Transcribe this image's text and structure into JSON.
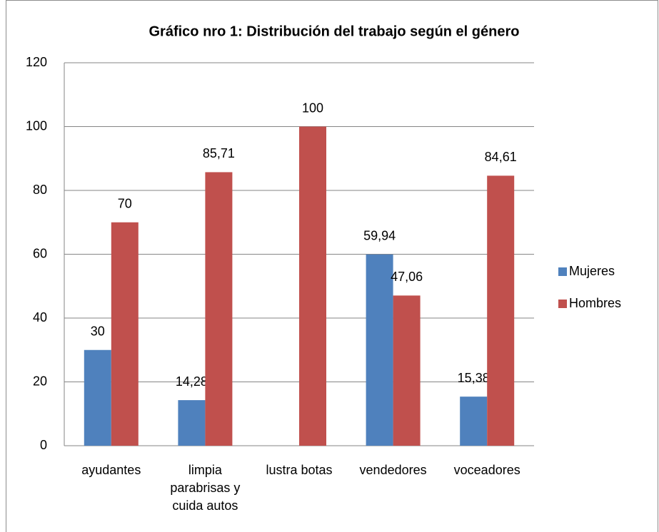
{
  "chart_data": {
    "type": "bar",
    "title": "Gráfico nro 1: Distribución del trabajo según el género",
    "categories": [
      "ayudantes",
      "limpia parabrisas y cuida autos",
      "lustra botas",
      "vendedores",
      "voceadores"
    ],
    "series": [
      {
        "name": "Mujeres",
        "color": "#4f81bd",
        "values": [
          30,
          14.28,
          null,
          59.94,
          15.38
        ],
        "value_labels": [
          "30",
          "14,28",
          null,
          "59,94",
          "15,38"
        ]
      },
      {
        "name": "Hombres",
        "color": "#c0504d",
        "values": [
          70,
          85.71,
          100,
          47.06,
          84.61
        ],
        "value_labels": [
          "70",
          "85,71",
          "100",
          "47,06",
          "84,61"
        ]
      }
    ],
    "ylim": [
      0,
      120
    ],
    "yticks": [
      0,
      20,
      40,
      60,
      80,
      100,
      120
    ],
    "grid": true,
    "legend": "right"
  }
}
